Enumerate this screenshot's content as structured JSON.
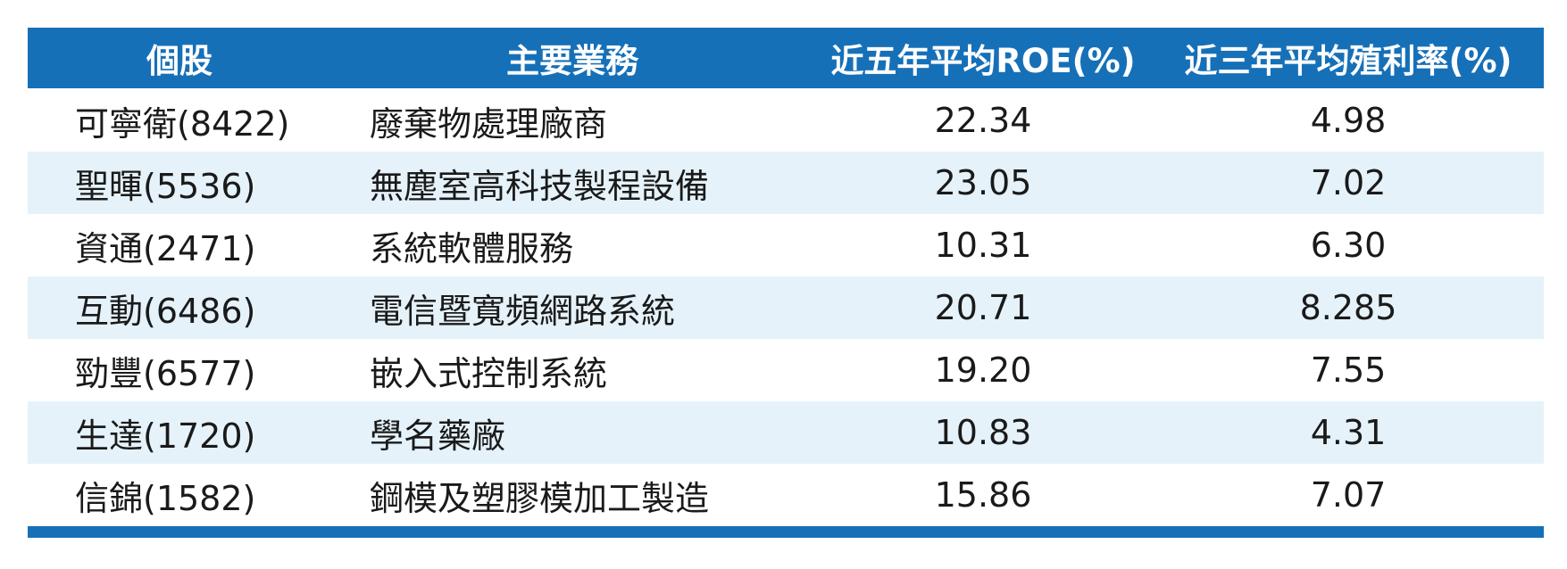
{
  "table": {
    "headers": [
      "個股",
      "主要業務",
      "近五年平均ROE(%)",
      "近三年平均殖利率(%)"
    ],
    "rows": [
      [
        "可寧衛(8422)",
        "廢棄物處理廠商",
        "22.34",
        "4.98"
      ],
      [
        "聖暉(5536)",
        "無塵室高科技製程設備",
        "23.05",
        "7.02"
      ],
      [
        "資通(2471)",
        "系統軟體服務",
        "10.31",
        "6.30"
      ],
      [
        "互動(6486)",
        "電信暨寬頻網路系統",
        "20.71",
        "8.285"
      ],
      [
        "勁豐(6577)",
        "嵌入式控制系統",
        "19.20",
        "7.55"
      ],
      [
        "生達(1720)",
        "學名藥廠",
        "10.83",
        "4.31"
      ],
      [
        "信錦(1582)",
        "鋼模及塑膠模加工製造",
        "15.86",
        "7.07"
      ]
    ]
  }
}
